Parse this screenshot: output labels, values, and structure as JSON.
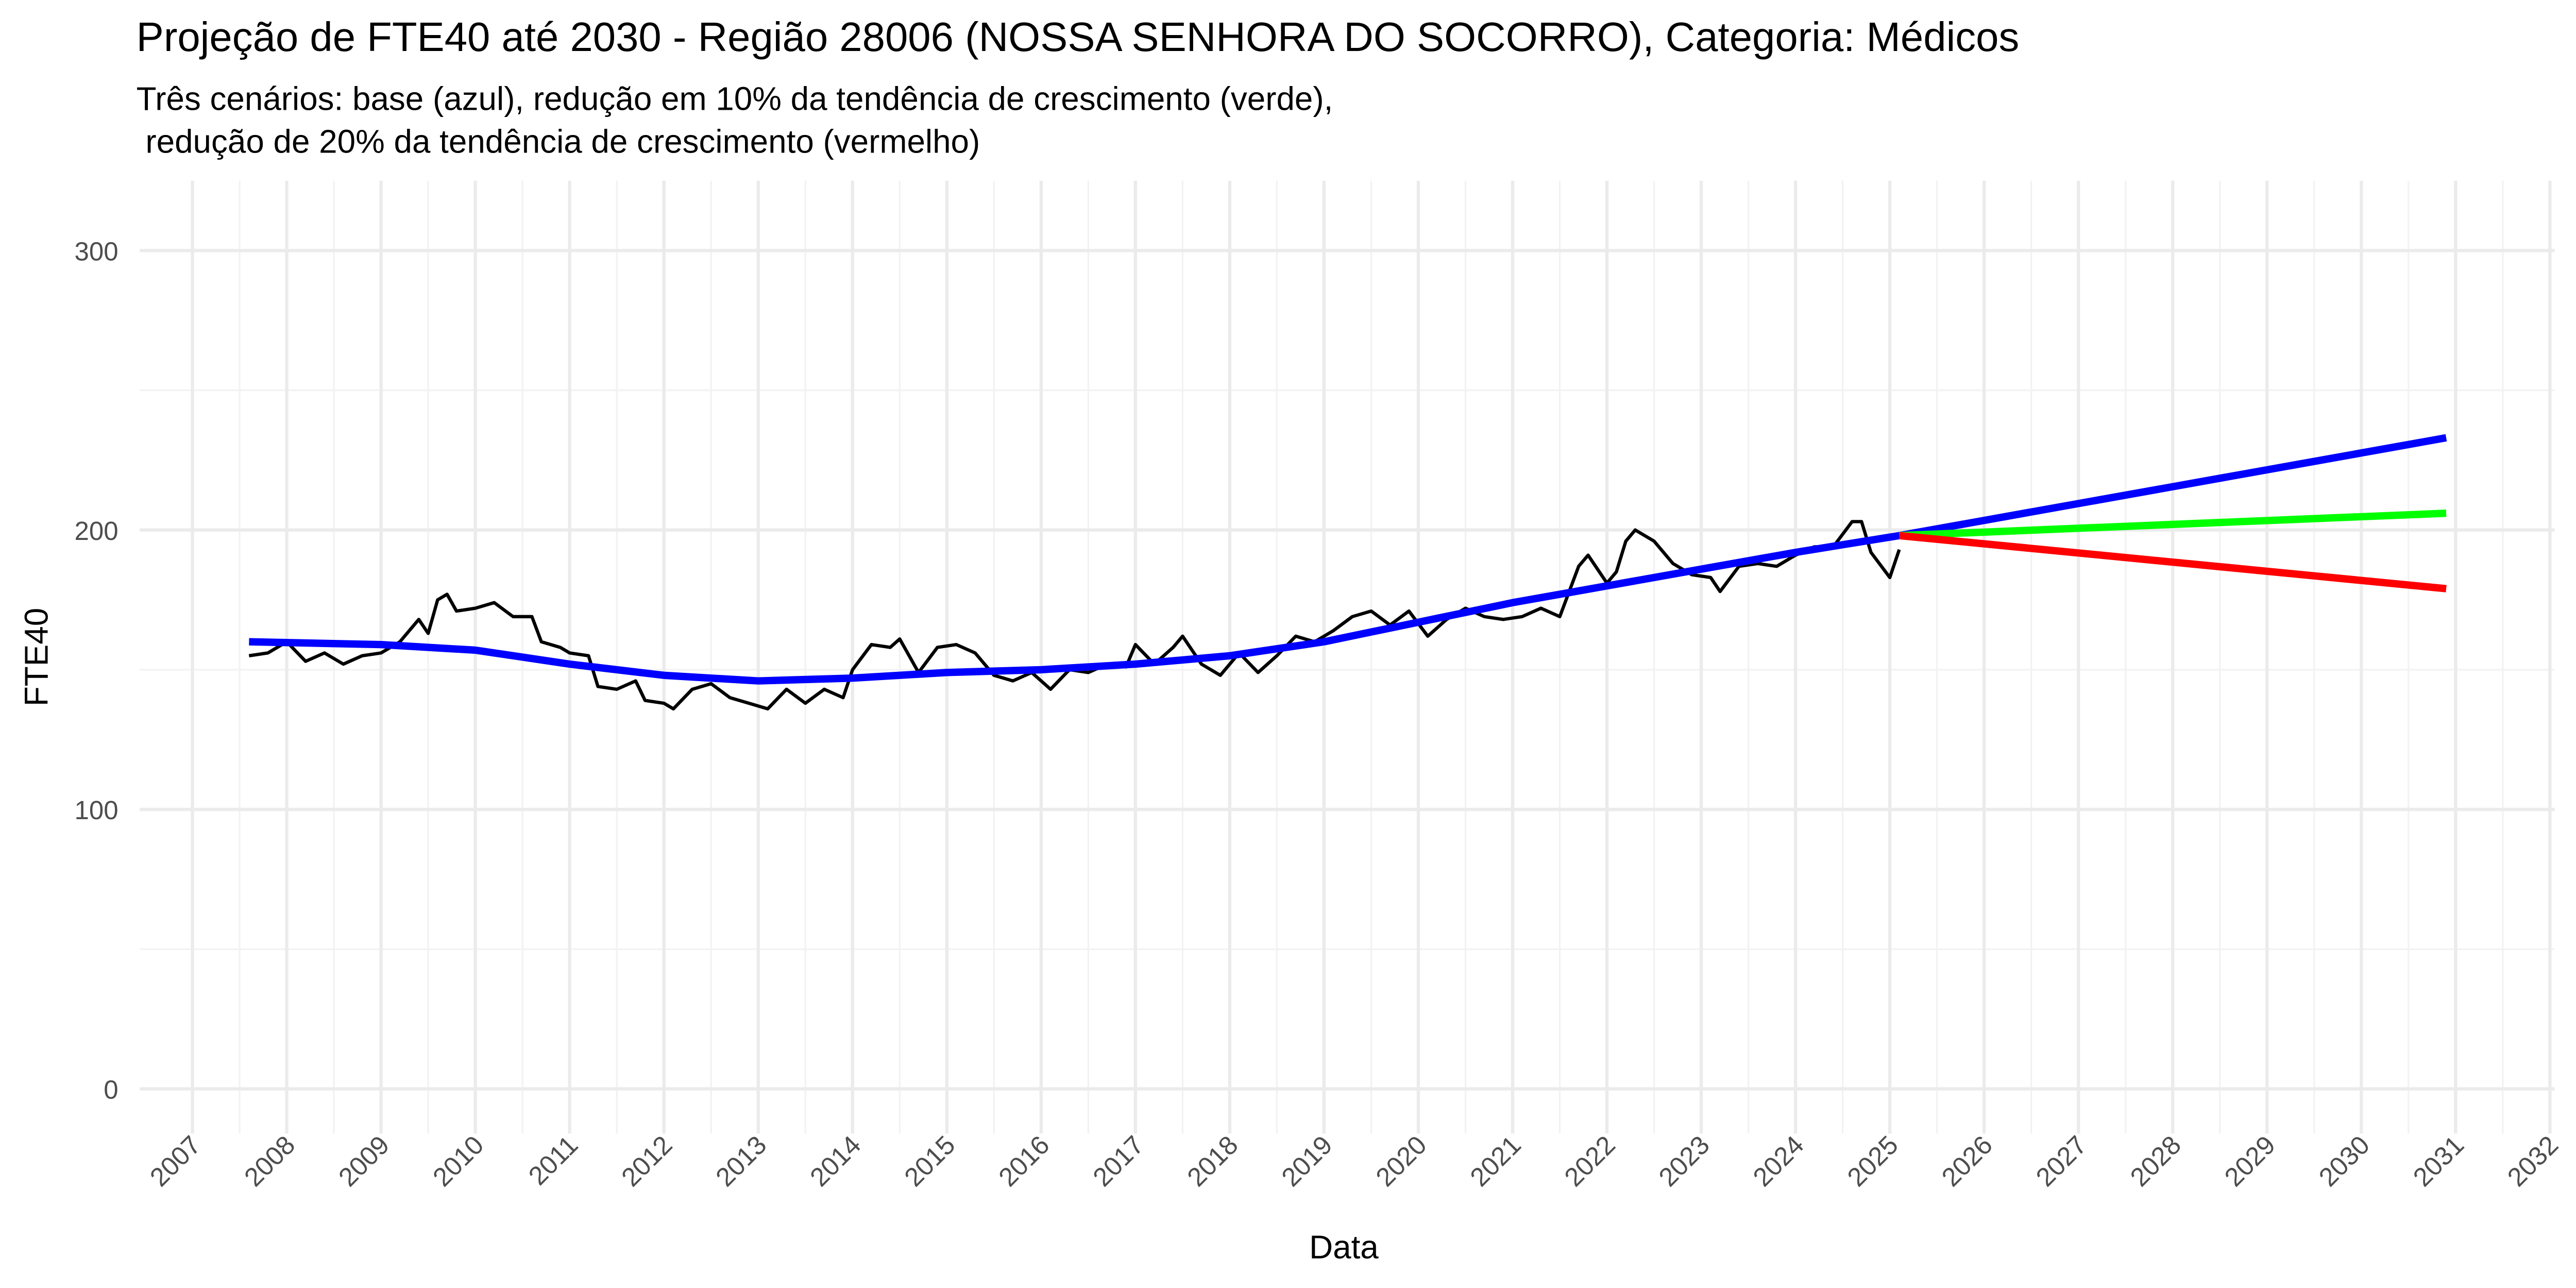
{
  "chart_data": {
    "type": "line",
    "title": "Projeção de FTE40 até 2030 - Região 28006 (NOSSA SENHORA DO SOCORRO), Categoria: Médicos",
    "subtitle": [
      "Três cenários: base (azul), redução em 10% da tendência de crescimento (verde),",
      " redução de 20% da tendência de crescimento (vermelho)"
    ],
    "xlabel": "Data",
    "ylabel": "FTE40",
    "xlim": [
      2006.44,
      2032.05
    ],
    "ylim": [
      -16,
      325
    ],
    "xticks": [
      2007,
      2008,
      2009,
      2010,
      2011,
      2012,
      2013,
      2014,
      2015,
      2016,
      2017,
      2018,
      2019,
      2020,
      2021,
      2022,
      2023,
      2024,
      2025,
      2026,
      2027,
      2028,
      2029,
      2030,
      2031,
      2032
    ],
    "yticks": [
      0,
      100,
      200,
      300
    ],
    "grid": true,
    "series": [
      {
        "color": "#000000",
        "width": 2,
        "x": [
          2007.6,
          2007.8,
          2008.0,
          2008.2,
          2008.4,
          2008.6,
          2008.8,
          2009.0,
          2009.2,
          2009.4,
          2009.5,
          2009.6,
          2009.7,
          2009.8,
          2010.0,
          2010.2,
          2010.4,
          2010.6,
          2010.7,
          2010.9,
          2011.0,
          2011.2,
          2011.3,
          2011.5,
          2011.7,
          2011.8,
          2012.0,
          2012.1,
          2012.3,
          2012.5,
          2012.7,
          2012.9,
          2013.1,
          2013.3,
          2013.5,
          2013.7,
          2013.9,
          2014.0,
          2014.2,
          2014.4,
          2014.5,
          2014.7,
          2014.9,
          2015.1,
          2015.3,
          2015.5,
          2015.7,
          2015.9,
          2016.1,
          2016.3,
          2016.5,
          2016.7,
          2016.9,
          2017.0,
          2017.2,
          2017.4,
          2017.5,
          2017.7,
          2017.9,
          2018.1,
          2018.3,
          2018.5,
          2018.7,
          2018.9,
          2019.1,
          2019.3,
          2019.5,
          2019.7,
          2019.9,
          2020.1,
          2020.3,
          2020.5,
          2020.7,
          2020.9,
          2021.1,
          2021.3,
          2021.5,
          2021.7,
          2021.8,
          2022.0,
          2022.1,
          2022.2,
          2022.3,
          2022.5,
          2022.7,
          2022.9,
          2023.1,
          2023.2,
          2023.4,
          2023.6,
          2023.8,
          2024.0,
          2024.2,
          2024.4,
          2024.6,
          2024.7,
          2024.8,
          2025.0,
          2025.1
        ],
        "values": [
          155,
          156,
          160,
          153,
          156,
          152,
          155,
          156,
          160,
          168,
          163,
          175,
          177,
          171,
          172,
          174,
          169,
          169,
          160,
          158,
          156,
          155,
          144,
          143,
          146,
          139,
          138,
          136,
          143,
          145,
          140,
          138,
          136,
          143,
          138,
          143,
          140,
          150,
          159,
          158,
          161,
          149,
          158,
          159,
          156,
          148,
          146,
          149,
          143,
          150,
          149,
          152,
          151,
          159,
          152,
          158,
          162,
          152,
          148,
          156,
          149,
          155,
          162,
          160,
          164,
          169,
          171,
          166,
          171,
          162,
          168,
          172,
          169,
          168,
          169,
          172,
          169,
          187,
          191,
          181,
          185,
          196,
          200,
          196,
          188,
          184,
          183,
          178,
          187,
          188,
          187,
          191,
          194,
          194,
          203,
          203,
          192,
          183,
          193
        ]
      },
      {
        "color": "#0000ff",
        "width": 4.5,
        "x": [
          2007.6,
          2009,
          2010,
          2011,
          2012,
          2013,
          2014,
          2015,
          2016,
          2017,
          2018,
          2019,
          2020,
          2021,
          2022,
          2023,
          2024,
          2025.1,
          2030.9
        ],
        "values": [
          160,
          159,
          157,
          152,
          148,
          146,
          147,
          149,
          150,
          152,
          155,
          160,
          167,
          174,
          180,
          186,
          192,
          198,
          233
        ]
      },
      {
        "color": "#00ff00",
        "width": 4.5,
        "x": [
          2025.1,
          2030.9
        ],
        "values": [
          198,
          206
        ]
      },
      {
        "color": "#ff0000",
        "width": 4.5,
        "x": [
          2025.1,
          2030.9
        ],
        "values": [
          198,
          179
        ]
      }
    ]
  }
}
